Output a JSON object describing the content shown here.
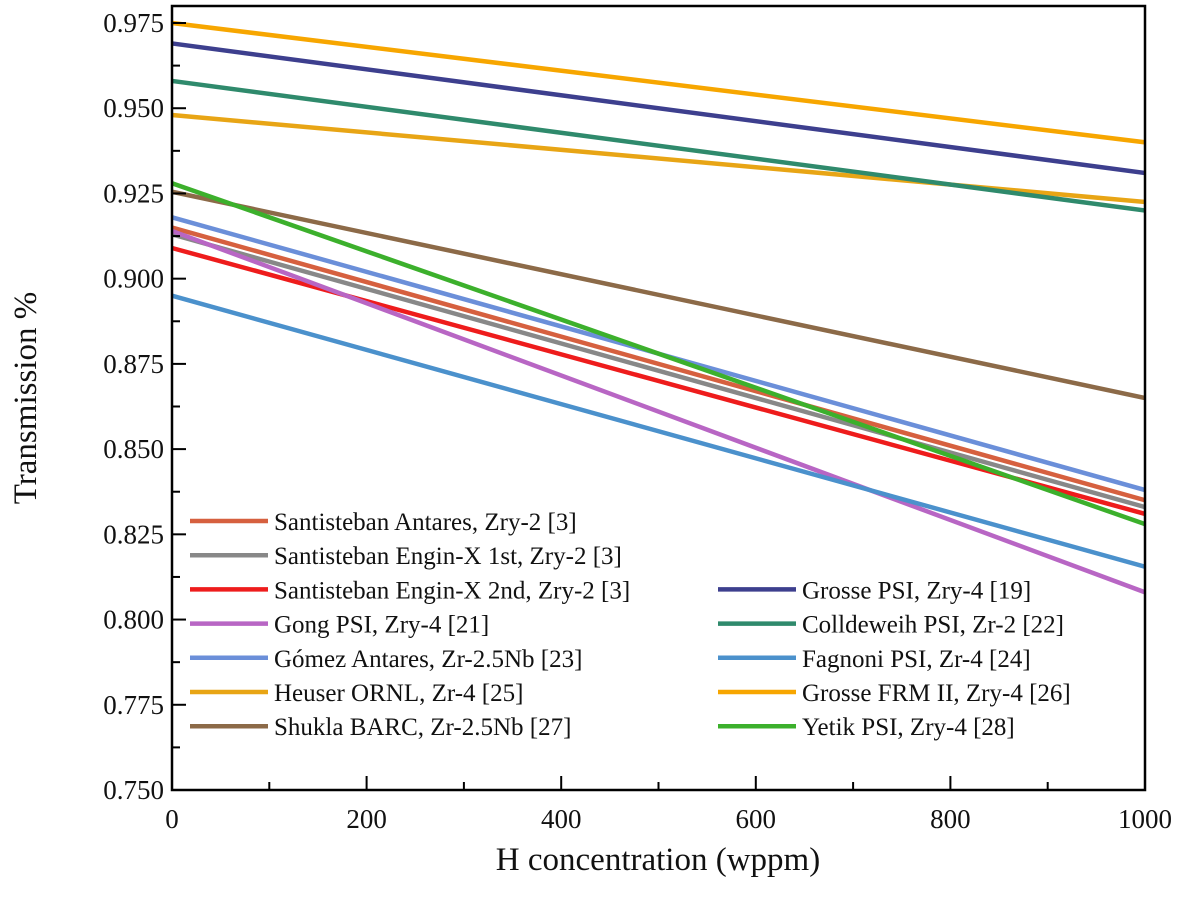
{
  "chart_data": {
    "type": "line",
    "title": "",
    "xlabel": "H concentration (wppm)",
    "ylabel": "Transmission %",
    "xlim": [
      0,
      1000
    ],
    "ylim": [
      0.75,
      0.975
    ],
    "xticks": [
      "0",
      "200",
      "400",
      "600",
      "800",
      "1000"
    ],
    "yticks": [
      "0.750",
      "0.775",
      "0.800",
      "0.825",
      "0.850",
      "0.875",
      "0.900",
      "0.925",
      "0.950",
      "0.975"
    ],
    "grid": false,
    "legend_placement": "bottom, two columns",
    "series": [
      {
        "name": "Santisteban Antares, Zry-2 [3]",
        "color": "#d6603f",
        "x": [
          0,
          1000
        ],
        "y": [
          0.915,
          0.835
        ]
      },
      {
        "name": "Santisteban Engin-X 1st, Zry-2 [3]",
        "color": "#888888",
        "x": [
          0,
          1000
        ],
        "y": [
          0.913,
          0.833
        ]
      },
      {
        "name": "Santisteban Engin-X 2nd, Zry-2 [3]",
        "color": "#ee1c1c",
        "x": [
          0,
          1000
        ],
        "y": [
          0.909,
          0.831
        ]
      },
      {
        "name": "Gong PSI, Zry-4 [21]",
        "color": "#b866c4",
        "x": [
          0,
          1000
        ],
        "y": [
          0.914,
          0.808
        ]
      },
      {
        "name": "Gómez Antares, Zr-2.5Nb [23]",
        "color": "#6b8fd9",
        "x": [
          0,
          1000
        ],
        "y": [
          0.918,
          0.838
        ]
      },
      {
        "name": "Heuser ORNL, Zr-4 [25]",
        "color": "#e8a515",
        "x": [
          0,
          1000
        ],
        "y": [
          0.948,
          0.9225
        ]
      },
      {
        "name": "Shukla BARC, Zr-2.5Nb [27]",
        "color": "#8c6a48",
        "x": [
          0,
          1000
        ],
        "y": [
          0.9255,
          0.865
        ]
      },
      {
        "name": "Grosse PSI, Zry-4 [19]",
        "color": "#3d3f8e",
        "x": [
          0,
          1000
        ],
        "y": [
          0.969,
          0.931
        ]
      },
      {
        "name": "Colldeweih PSI, Zr-2 [22]",
        "color": "#2f8a6c",
        "x": [
          0,
          1000
        ],
        "y": [
          0.958,
          0.92
        ]
      },
      {
        "name": "Fagnoni PSI, Zr-4 [24]",
        "color": "#4b91cc",
        "x": [
          0,
          1000
        ],
        "y": [
          0.895,
          0.8155
        ]
      },
      {
        "name": "Grosse FRM II, Zry-4 [26]",
        "color": "#f7a600",
        "x": [
          0,
          1000
        ],
        "y": [
          0.975,
          0.94
        ]
      },
      {
        "name": "Yetik PSI, Zry-4 [28]",
        "color": "#3cb02c",
        "x": [
          0,
          1000
        ],
        "y": [
          0.928,
          0.828
        ]
      }
    ]
  }
}
